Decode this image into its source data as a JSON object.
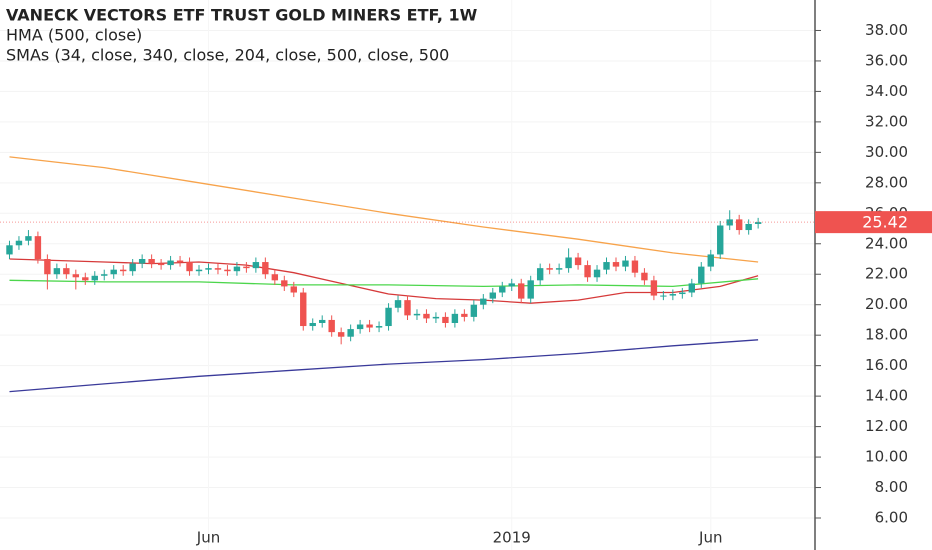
{
  "chart_data": {
    "type": "candlestick",
    "title": "VANECK VECTORS ETF TRUST GOLD MINERS ETF, 1W",
    "indicators": [
      "HMA (500, close)",
      "SMAs (34, close, 340, close, 204, close, 500, close, 500"
    ],
    "up_color": "#26a69a",
    "down_color": "#ef5350",
    "open": [
      23.3,
      23.9,
      24.2,
      24.5,
      23.0,
      22.0,
      22.4,
      22.0,
      21.8,
      21.6,
      21.9,
      22.0,
      22.3,
      22.2,
      22.7,
      23.0,
      22.7,
      22.6,
      22.9,
      22.8,
      22.2,
      22.3,
      22.4,
      22.3,
      22.2,
      22.5,
      22.4,
      22.8,
      22.0,
      21.6,
      21.2,
      20.8,
      18.6,
      18.8,
      19.0,
      18.2,
      17.9,
      18.4,
      18.7,
      18.5,
      18.6,
      19.8,
      20.3,
      19.3,
      19.4,
      19.1,
      19.2,
      18.8,
      19.4,
      19.2,
      20.0,
      20.4,
      20.8,
      21.2,
      21.4,
      20.4,
      21.6,
      22.4,
      22.3,
      22.4,
      23.1,
      22.6,
      21.8,
      22.3,
      22.8,
      22.5,
      22.9,
      22.1,
      21.6,
      20.6,
      20.6,
      20.7,
      20.8,
      21.4,
      22.5,
      23.3,
      25.2,
      25.6,
      24.9,
      25.3
    ],
    "high": [
      24.2,
      24.5,
      24.9,
      24.8,
      23.3,
      22.7,
      22.7,
      22.3,
      22.1,
      22.2,
      22.3,
      22.6,
      22.6,
      23.0,
      23.3,
      23.3,
      23.0,
      23.2,
      23.2,
      23.1,
      22.6,
      22.7,
      22.7,
      22.6,
      22.8,
      22.8,
      23.1,
      23.1,
      22.3,
      21.9,
      21.5,
      21.1,
      19.1,
      19.3,
      19.3,
      18.5,
      18.7,
      19.0,
      19.0,
      18.9,
      20.1,
      20.6,
      20.6,
      19.7,
      19.7,
      19.5,
      19.5,
      19.7,
      19.7,
      20.3,
      20.7,
      21.1,
      21.5,
      21.7,
      21.7,
      21.9,
      22.7,
      22.7,
      22.7,
      23.7,
      23.4,
      22.9,
      22.6,
      23.1,
      23.1,
      23.2,
      23.2,
      22.4,
      21.9,
      20.9,
      21.0,
      21.1,
      21.7,
      22.8,
      23.6,
      25.5,
      26.2,
      25.9,
      25.6,
      25.7
    ],
    "low": [
      23.0,
      23.6,
      23.9,
      22.7,
      21.0,
      21.7,
      21.7,
      21.0,
      21.3,
      21.3,
      21.6,
      21.7,
      21.9,
      21.9,
      22.4,
      22.4,
      22.3,
      22.3,
      22.5,
      21.9,
      21.9,
      22.0,
      22.0,
      21.9,
      21.9,
      22.1,
      22.1,
      21.7,
      21.3,
      20.9,
      20.5,
      18.3,
      18.3,
      18.5,
      17.9,
      17.4,
      17.6,
      18.1,
      18.2,
      18.2,
      18.3,
      19.5,
      19.0,
      19.0,
      18.8,
      18.8,
      18.5,
      18.5,
      18.9,
      18.9,
      19.7,
      20.1,
      20.5,
      20.9,
      20.1,
      20.1,
      21.3,
      22.0,
      22.0,
      22.1,
      22.3,
      21.5,
      21.5,
      22.0,
      22.2,
      22.2,
      21.8,
      21.3,
      20.3,
      20.3,
      20.3,
      20.4,
      20.5,
      21.1,
      22.2,
      23.0,
      24.9,
      24.6,
      24.6,
      25.0
    ],
    "close": [
      23.9,
      24.2,
      24.5,
      23.0,
      22.0,
      22.4,
      22.0,
      21.8,
      21.6,
      21.9,
      22.0,
      22.3,
      22.2,
      22.7,
      23.0,
      22.7,
      22.6,
      22.9,
      22.8,
      22.2,
      22.3,
      22.4,
      22.3,
      22.2,
      22.5,
      22.4,
      22.8,
      22.0,
      21.6,
      21.2,
      20.8,
      18.6,
      18.8,
      19.0,
      18.2,
      17.9,
      18.4,
      18.7,
      18.5,
      18.6,
      19.8,
      20.3,
      19.3,
      19.4,
      19.1,
      19.2,
      18.8,
      19.4,
      19.2,
      20.0,
      20.4,
      20.8,
      21.2,
      21.4,
      20.4,
      21.6,
      22.4,
      22.3,
      22.4,
      23.1,
      22.6,
      21.8,
      22.3,
      22.8,
      22.5,
      22.9,
      22.1,
      21.6,
      20.6,
      20.6,
      20.7,
      20.8,
      21.4,
      22.5,
      23.3,
      25.2,
      25.6,
      24.9,
      25.3,
      25.42
    ],
    "last_price": 25.42,
    "last_price_color": "#ef5350",
    "lines": [
      {
        "color": "#f7a34b",
        "x": [
          0,
          10,
          20,
          30,
          40,
          50,
          60,
          70,
          79
        ],
        "values": [
          29.7,
          29.0,
          28.0,
          27.0,
          26.0,
          25.1,
          24.3,
          23.4,
          22.8
        ]
      },
      {
        "color": "#d63a3a",
        "x": [
          0,
          5,
          10,
          15,
          20,
          25,
          30,
          35,
          40,
          45,
          50,
          55,
          60,
          65,
          70,
          75,
          79
        ],
        "values": [
          23.0,
          22.9,
          22.8,
          22.7,
          22.8,
          22.6,
          22.1,
          21.4,
          20.7,
          20.4,
          20.3,
          20.1,
          20.3,
          20.8,
          20.8,
          21.2,
          21.9
        ]
      },
      {
        "color": "#4cd64c",
        "x": [
          0,
          10,
          20,
          30,
          40,
          50,
          60,
          70,
          79
        ],
        "values": [
          21.6,
          21.5,
          21.5,
          21.3,
          21.3,
          21.2,
          21.3,
          21.2,
          21.7
        ]
      },
      {
        "color": "#3a3a9a",
        "x": [
          0,
          10,
          20,
          30,
          40,
          50,
          60,
          70,
          79
        ],
        "values": [
          14.3,
          14.8,
          15.3,
          15.7,
          16.1,
          16.4,
          16.8,
          17.3,
          17.7
        ]
      }
    ],
    "xlim": [
      -1,
      85
    ],
    "xticks": [
      {
        "value": 21,
        "label": "Jun"
      },
      {
        "value": 53,
        "label": "2019"
      },
      {
        "value": 74,
        "label": "Jun"
      }
    ],
    "ylim": [
      3.9,
      40
    ],
    "yticks": [
      {
        "value": 6,
        "label": "6.00"
      },
      {
        "value": 8,
        "label": "8.00"
      },
      {
        "value": 10,
        "label": "10.00"
      },
      {
        "value": 12,
        "label": "12.00"
      },
      {
        "value": 14,
        "label": "14.00"
      },
      {
        "value": 16,
        "label": "16.00"
      },
      {
        "value": 18,
        "label": "18.00"
      },
      {
        "value": 20,
        "label": "20.00"
      },
      {
        "value": 22,
        "label": "22.00"
      },
      {
        "value": 24,
        "label": "24.00"
      },
      {
        "value": 26,
        "label": "26.00"
      },
      {
        "value": 28,
        "label": "28.00"
      },
      {
        "value": 30,
        "label": "30.00"
      },
      {
        "value": 32,
        "label": "32.00"
      },
      {
        "value": 34,
        "label": "34.00"
      },
      {
        "value": 36,
        "label": "36.00"
      },
      {
        "value": 38,
        "label": "38.00"
      }
    ],
    "grid": true
  }
}
